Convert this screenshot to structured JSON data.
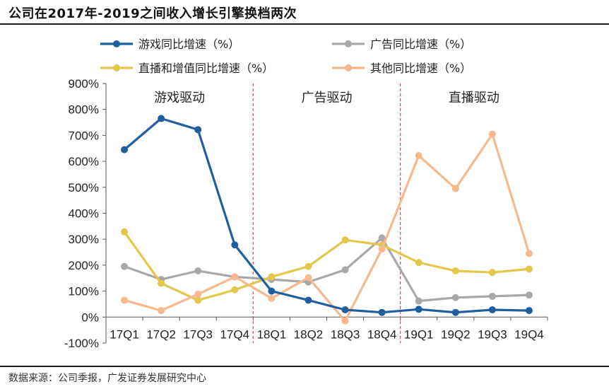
{
  "title": "公司在2017年-2019之间收入增长引擎换档两次",
  "source": "数据来源：公司季报，广发证券发展研究中心",
  "chart_data": {
    "type": "line",
    "categories": [
      "17Q1",
      "17Q2",
      "17Q3",
      "17Q4",
      "18Q1",
      "18Q2",
      "18Q3",
      "18Q4",
      "19Q1",
      "19Q2",
      "19Q3",
      "19Q4"
    ],
    "ylim": [
      -100,
      900
    ],
    "yticks": [
      -100,
      0,
      100,
      200,
      300,
      400,
      500,
      600,
      700,
      800,
      900
    ],
    "ytick_labels": [
      "-100%",
      "0%",
      "100%",
      "200%",
      "300%",
      "400%",
      "500%",
      "600%",
      "700%",
      "800%",
      "900%"
    ],
    "grid": false,
    "legend_position": "top",
    "region_dividers_after_index": [
      3,
      7
    ],
    "regions": [
      "游戏驱动",
      "广告驱动",
      "直播驱动"
    ],
    "series": [
      {
        "name": "游戏同比增速（%）",
        "color": "#1f5fa0",
        "values": [
          645,
          765,
          722,
          278,
          100,
          65,
          28,
          18,
          30,
          18,
          28,
          25
        ]
      },
      {
        "name": "广告同比增速（%）",
        "color": "#a8a8a8",
        "values": [
          195,
          145,
          178,
          155,
          145,
          135,
          182,
          305,
          62,
          75,
          80,
          85
        ]
      },
      {
        "name": "直播和增值同比增速（%）",
        "color": "#e3c74a",
        "values": [
          328,
          130,
          65,
          105,
          155,
          195,
          297,
          278,
          210,
          178,
          172,
          185
        ]
      },
      {
        "name": "其他同比增速（%）",
        "color": "#f6b88c",
        "values": [
          65,
          25,
          88,
          155,
          72,
          152,
          -15,
          262,
          622,
          495,
          705,
          245
        ]
      }
    ]
  }
}
